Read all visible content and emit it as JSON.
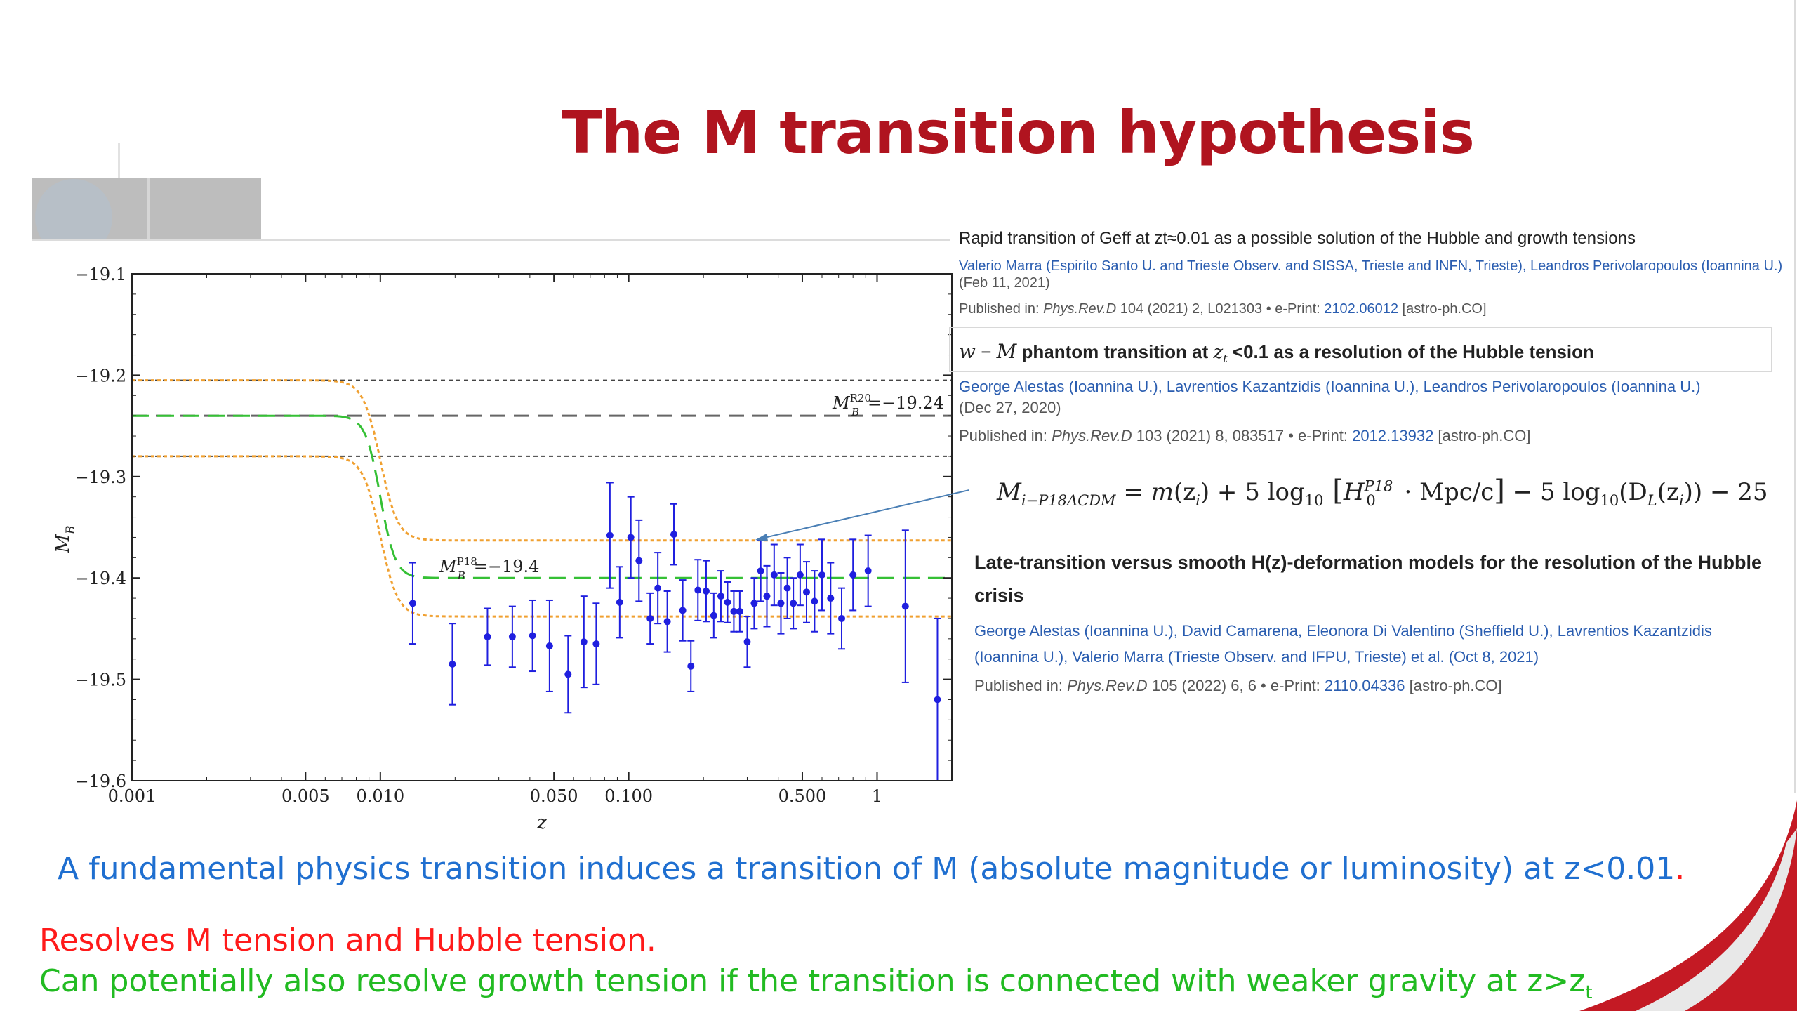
{
  "slide": {
    "title": "The M transition hypothesis",
    "accent_color": "#b0141f"
  },
  "references": [
    {
      "title": "Rapid transition of Geff at zt≈0.01 as a possible solution of the Hubble and growth tensions",
      "authors": "Valerio Marra (Espirito Santo U. and Trieste Observ. and SISSA, Trieste and INFN, Trieste), Leandros Perivolaropoulos (Ioannina U.)",
      "date": "(Feb 11, 2021)",
      "pub_prefix": "Published in: ",
      "journal": "Phys.Rev.D",
      "pub_info": " 104 (2021) 2, L021303 • e-Print: ",
      "eprint": "2102.06012",
      "category": " [astro-ph.CO]"
    },
    {
      "title_w": "w",
      "title_minus": " − ",
      "title_M": "M",
      "title_mid": " phantom transition at ",
      "title_z": "z",
      "title_sub": "t",
      "title_rest": " <0.1 as a resolution of the Hubble tension",
      "authors": "George Alestas (Ioannina U.), Lavrentios Kazantzidis (Ioannina U.), Leandros Perivolaropoulos (Ioannina U.)",
      "date": "(Dec 27, 2020)",
      "pub_prefix": "Published in: ",
      "journal": "Phys.Rev.D",
      "pub_info": " 103 (2021) 8, 083517 • e-Print: ",
      "eprint": "2012.13932",
      "category": " [astro-ph.CO]"
    },
    {
      "title": "Late-transition versus smooth H(z)-deformation models for the resolution of the Hubble crisis",
      "authors": "George Alestas (Ioannina U.), David Camarena, Eleonora Di Valentino (Sheffield U.), Lavrentios Kazantzidis (Ioannina U.), Valerio Marra (Trieste Observ. and IFPU, Trieste) et al. (Oct 8, 2021)",
      "pub_prefix": "Published in: ",
      "journal": "Phys.Rev.D",
      "pub_info": " 105 (2022) 6, 6 • e-Print: ",
      "eprint": "2110.04336",
      "category": " [astro-ph.CO]"
    }
  ],
  "equation": {
    "lhs": "M",
    "lhs_sub": "i−P18ΛCDM",
    "eq": " = ",
    "m": "m",
    "zi1": "(z",
    "zi1_sub": "i",
    "close1": ")",
    "plus": " + 5 log",
    "log_sub": "10",
    "bracket_open": " [",
    "H": "H",
    "H_sup": "P18",
    "H_sub": "0",
    "mpc": " · Mpc/c",
    "bracket_close": "]",
    "minus": " − 5 log",
    "log2_sub": "10",
    "dl": "(D",
    "dl_sub": "L",
    "dl_z": "(z",
    "dl_z_sub": "i",
    "dl_close": "))",
    "tail": " − 25"
  },
  "bullets": {
    "line1": "A fundamental physics transition induces a transition of M (absolute magnitude or luminosity) at  z<0.01",
    "line1_dot": ".",
    "line2": "Resolves M tension and Hubble tension.",
    "line3": "Can potentially also resolve growth tension if the transition is connected with weaker gravity at z>z",
    "line3_sub": "t"
  },
  "chart_data": {
    "type": "scatter",
    "xlabel": "z",
    "ylabel": "M",
    "ylabel_sub": "B",
    "x_scale": "log",
    "xlim": [
      0.001,
      2.0
    ],
    "ylim": [
      -19.6,
      -19.1
    ],
    "x_ticks": [
      0.001,
      0.005,
      0.01,
      0.05,
      0.1,
      0.5,
      1
    ],
    "x_tick_labels": [
      "0.001",
      "0.005",
      "0.010",
      "0.050",
      "0.100",
      "0.500",
      "1"
    ],
    "y_ticks": [
      -19.1,
      -19.2,
      -19.3,
      -19.4,
      -19.5,
      -19.6
    ],
    "y_tick_labels": [
      "−19.1",
      "−19.2",
      "−19.3",
      "−19.4",
      "−19.5",
      "−19.6"
    ],
    "annotations": {
      "r20_base": "M",
      "r20_sup": "R20",
      "r20_sub": "B",
      "r20_val": "=−19.24",
      "p18_base": "M",
      "p18_sup": "P18",
      "p18_sub": "B",
      "p18_val": "=−19.4"
    },
    "reference_lines": {
      "r20": -19.24,
      "r20_upper": -19.205,
      "r20_lower": -19.28,
      "p18": -19.4,
      "p18_upper": -19.363,
      "p18_lower": -19.438,
      "transition_z": 0.01
    },
    "series_color": "#1f1fdf",
    "points": [
      {
        "x": 0.0135,
        "y": -19.425,
        "err": 0.04
      },
      {
        "x": 0.0195,
        "y": -19.485,
        "err": 0.04
      },
      {
        "x": 0.027,
        "y": -19.458,
        "err": 0.028
      },
      {
        "x": 0.034,
        "y": -19.458,
        "err": 0.03
      },
      {
        "x": 0.041,
        "y": -19.457,
        "err": 0.035
      },
      {
        "x": 0.048,
        "y": -19.467,
        "err": 0.045
      },
      {
        "x": 0.057,
        "y": -19.495,
        "err": 0.038
      },
      {
        "x": 0.066,
        "y": -19.463,
        "err": 0.045
      },
      {
        "x": 0.074,
        "y": -19.465,
        "err": 0.04
      },
      {
        "x": 0.084,
        "y": -19.358,
        "err": 0.052
      },
      {
        "x": 0.092,
        "y": -19.424,
        "err": 0.035
      },
      {
        "x": 0.102,
        "y": -19.36,
        "err": 0.04
      },
      {
        "x": 0.11,
        "y": -19.383,
        "err": 0.04
      },
      {
        "x": 0.122,
        "y": -19.44,
        "err": 0.025
      },
      {
        "x": 0.131,
        "y": -19.41,
        "err": 0.035
      },
      {
        "x": 0.143,
        "y": -19.443,
        "err": 0.03
      },
      {
        "x": 0.152,
        "y": -19.357,
        "err": 0.03
      },
      {
        "x": 0.165,
        "y": -19.432,
        "err": 0.03
      },
      {
        "x": 0.178,
        "y": -19.487,
        "err": 0.025
      },
      {
        "x": 0.19,
        "y": -19.412,
        "err": 0.03
      },
      {
        "x": 0.205,
        "y": -19.413,
        "err": 0.03
      },
      {
        "x": 0.22,
        "y": -19.437,
        "err": 0.022
      },
      {
        "x": 0.235,
        "y": -19.418,
        "err": 0.025
      },
      {
        "x": 0.25,
        "y": -19.424,
        "err": 0.02
      },
      {
        "x": 0.265,
        "y": -19.433,
        "err": 0.02
      },
      {
        "x": 0.28,
        "y": -19.433,
        "err": 0.02
      },
      {
        "x": 0.3,
        "y": -19.463,
        "err": 0.025
      },
      {
        "x": 0.32,
        "y": -19.425,
        "err": 0.025
      },
      {
        "x": 0.34,
        "y": -19.393,
        "err": 0.03
      },
      {
        "x": 0.36,
        "y": -19.418,
        "err": 0.03
      },
      {
        "x": 0.385,
        "y": -19.397,
        "err": 0.03
      },
      {
        "x": 0.41,
        "y": -19.425,
        "err": 0.03
      },
      {
        "x": 0.435,
        "y": -19.41,
        "err": 0.03
      },
      {
        "x": 0.46,
        "y": -19.425,
        "err": 0.025
      },
      {
        "x": 0.49,
        "y": -19.397,
        "err": 0.03
      },
      {
        "x": 0.52,
        "y": -19.414,
        "err": 0.03
      },
      {
        "x": 0.56,
        "y": -19.423,
        "err": 0.03
      },
      {
        "x": 0.6,
        "y": -19.397,
        "err": 0.035
      },
      {
        "x": 0.65,
        "y": -19.42,
        "err": 0.035
      },
      {
        "x": 0.72,
        "y": -19.44,
        "err": 0.03
      },
      {
        "x": 0.8,
        "y": -19.397,
        "err": 0.035
      },
      {
        "x": 0.92,
        "y": -19.393,
        "err": 0.035
      },
      {
        "x": 1.3,
        "y": -19.428,
        "err": 0.075
      },
      {
        "x": 1.75,
        "y": -19.52,
        "err": 0.08
      }
    ]
  }
}
